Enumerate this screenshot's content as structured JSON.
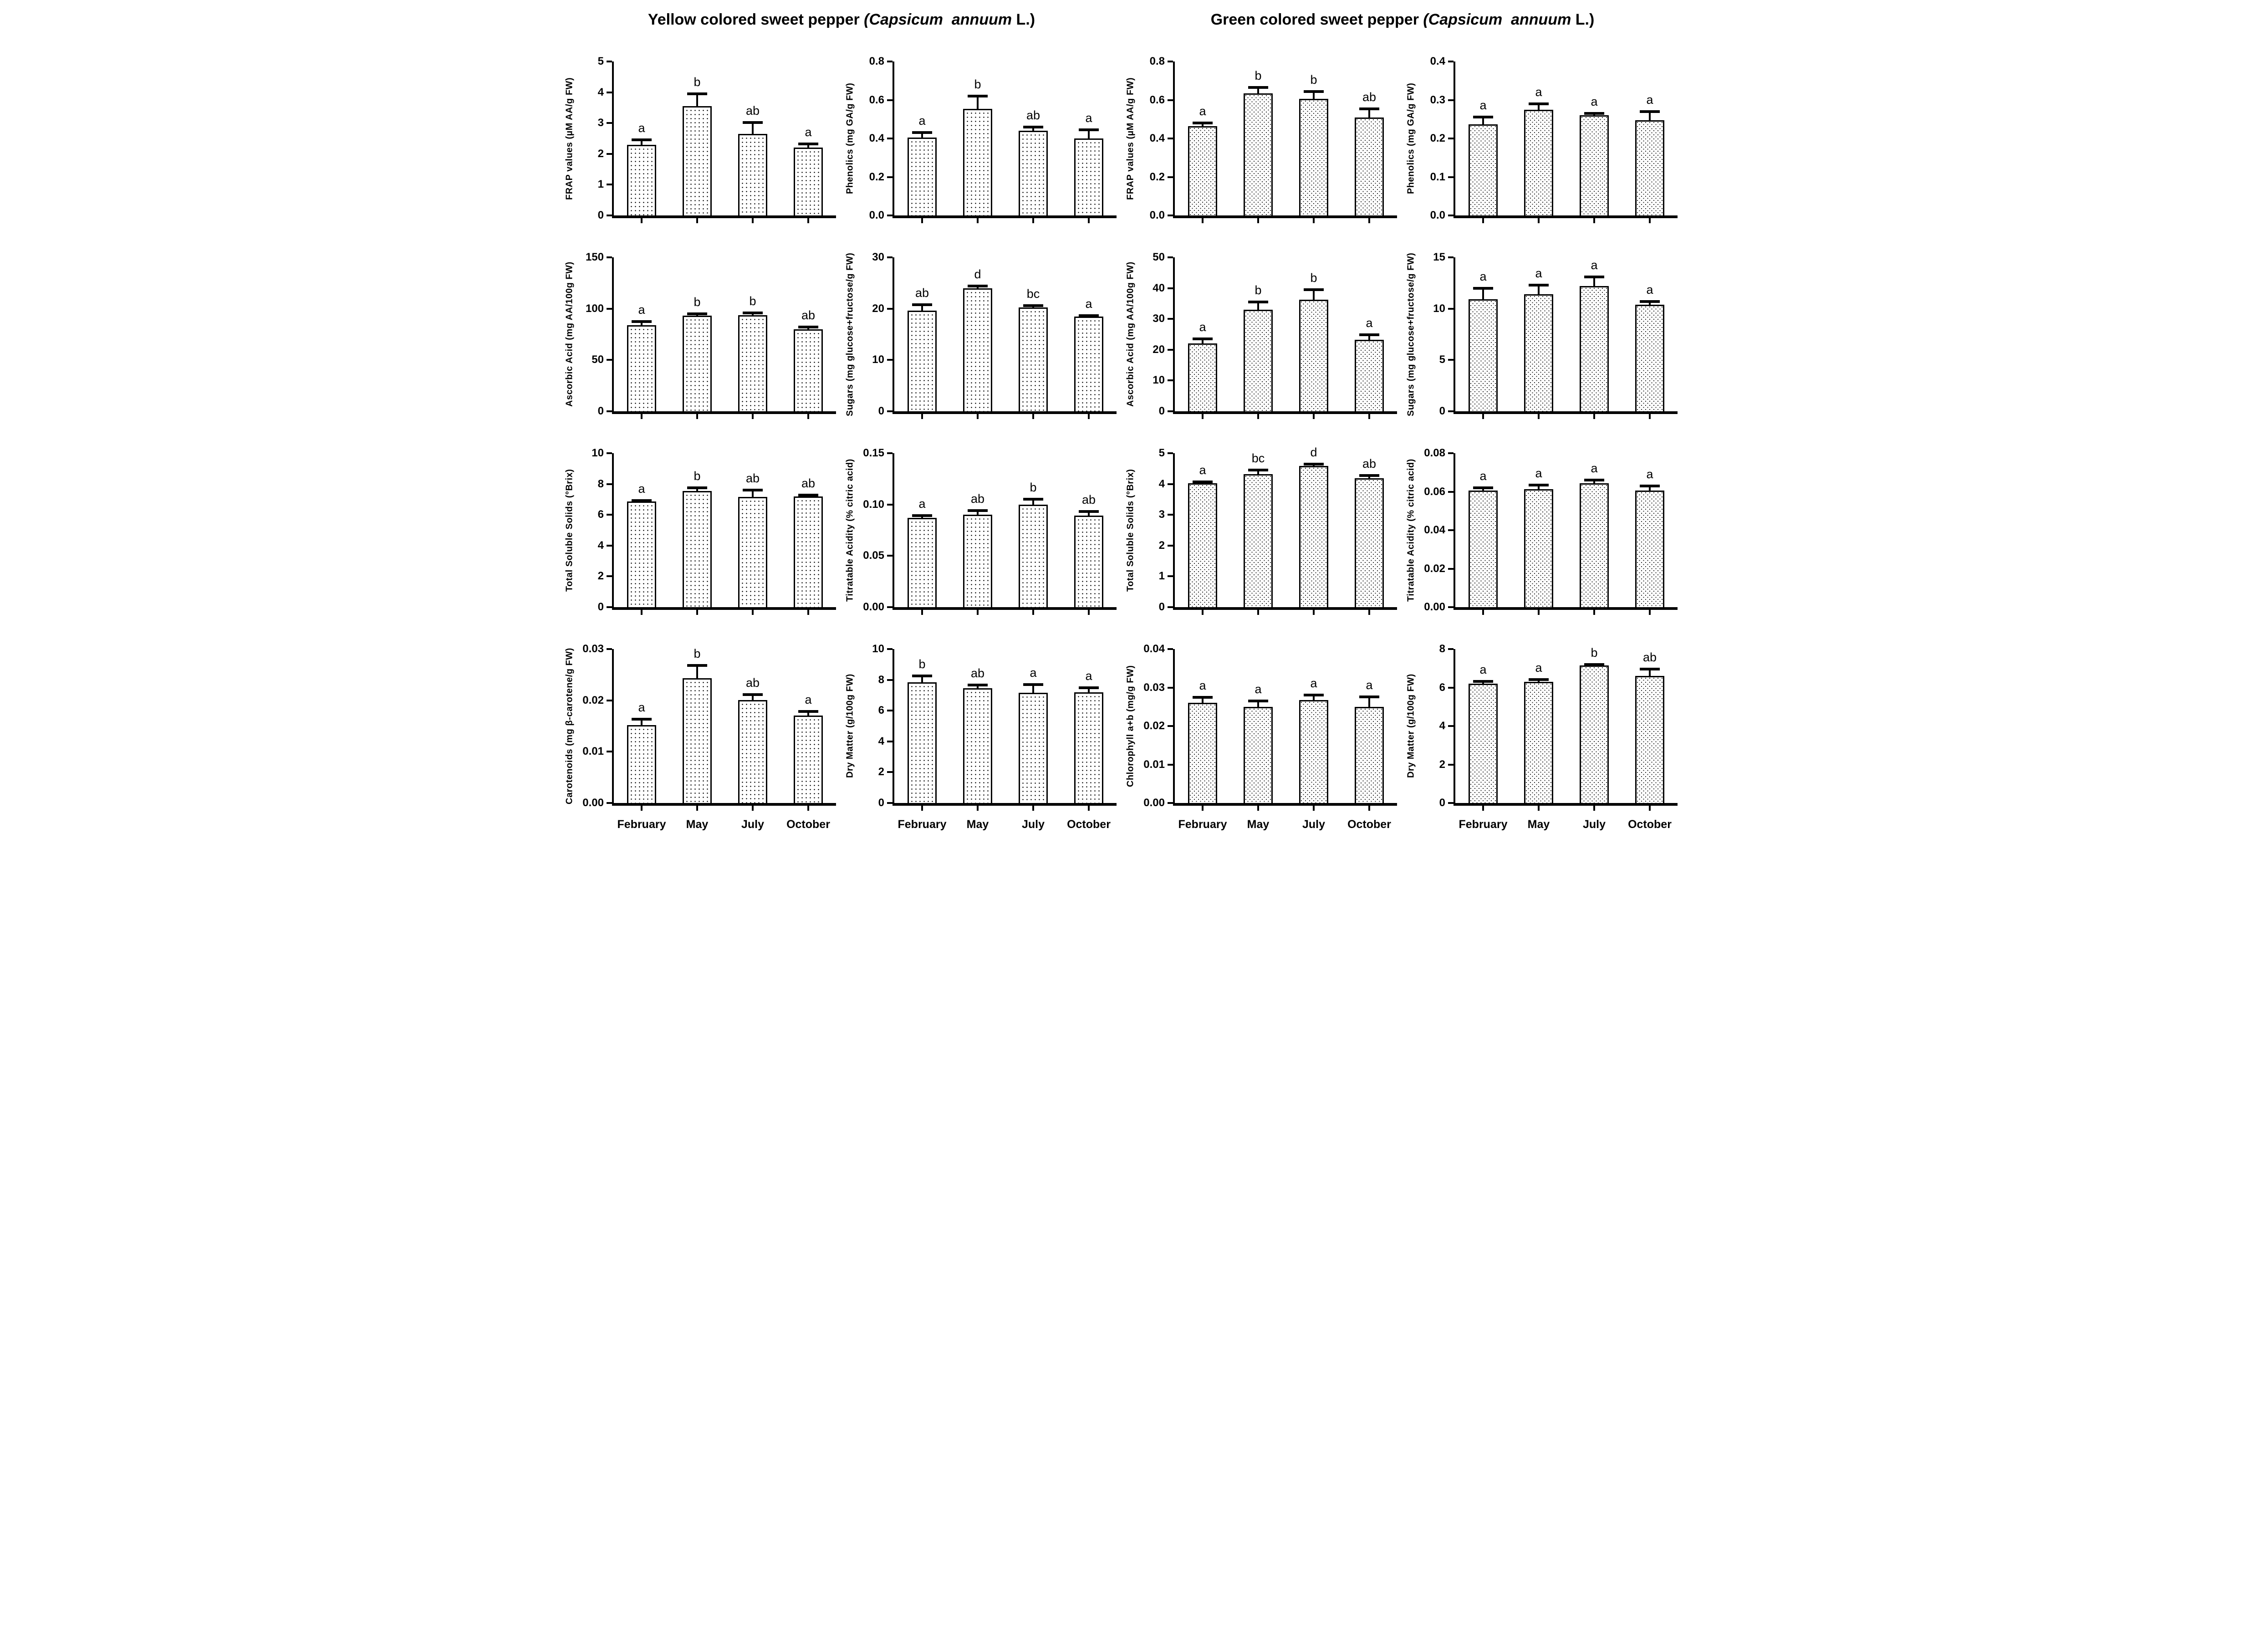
{
  "figure": {
    "titles": [
      {
        "plain": "Yellow colored sweet pepper ",
        "italic": "(Capsicum  annuum",
        "suffix": " L.)"
      },
      {
        "plain": "Green colored sweet pepper ",
        "italic": "(Capsicum  annuum",
        "suffix": " L.)"
      }
    ],
    "categories": [
      "February",
      "May",
      "July",
      "October"
    ],
    "colors": {
      "ink": "#000000",
      "background": "#ffffff"
    }
  },
  "chart_data": [
    {
      "name": "yellow-frap-chart",
      "group": "yellow",
      "type": "bar",
      "title": "",
      "xlabel": "",
      "ylabel": "FRAP values (µM AA/g FW)",
      "ymax": 5,
      "tick_values": [
        0,
        1,
        2,
        3,
        4,
        5
      ],
      "tick_labels": [
        "0",
        "1",
        "2",
        "3",
        "4",
        "5"
      ],
      "categories": [
        "February",
        "May",
        "July",
        "October"
      ],
      "values": [
        2.3,
        3.55,
        2.65,
        2.2
      ],
      "errors": [
        0.15,
        0.4,
        0.37,
        0.12
      ],
      "letters": [
        "a",
        "b",
        "ab",
        "a"
      ],
      "show_x_labels": false
    },
    {
      "name": "yellow-phenolics-chart",
      "group": "yellow",
      "type": "bar",
      "title": "",
      "xlabel": "",
      "ylabel": "Phenolics (mg GA/g FW)",
      "ymax": 0.8,
      "tick_values": [
        0,
        0.2,
        0.4,
        0.6,
        0.8
      ],
      "tick_labels": [
        "0.0",
        "0.2",
        "0.4",
        "0.6",
        "0.8"
      ],
      "categories": [
        "February",
        "May",
        "July",
        "October"
      ],
      "values": [
        0.405,
        0.555,
        0.44,
        0.4
      ],
      "errors": [
        0.025,
        0.065,
        0.02,
        0.045
      ],
      "letters": [
        "a",
        "b",
        "ab",
        "a"
      ],
      "show_x_labels": false
    },
    {
      "name": "green-frap-chart",
      "group": "green",
      "type": "bar",
      "title": "",
      "xlabel": "",
      "ylabel": "FRAP values (µM AA/g FW)",
      "ymax": 0.8,
      "tick_values": [
        0,
        0.2,
        0.4,
        0.6,
        0.8
      ],
      "tick_labels": [
        "0.0",
        "0.2",
        "0.4",
        "0.6",
        "0.8"
      ],
      "categories": [
        "February",
        "May",
        "July",
        "October"
      ],
      "values": [
        0.465,
        0.635,
        0.605,
        0.51
      ],
      "errors": [
        0.015,
        0.03,
        0.04,
        0.045
      ],
      "letters": [
        "a",
        "b",
        "b",
        "ab"
      ],
      "show_x_labels": false
    },
    {
      "name": "green-phenolics-chart",
      "group": "green",
      "type": "bar",
      "title": "",
      "xlabel": "",
      "ylabel": "Phenolics (mg GA/g FW)",
      "ymax": 0.4,
      "tick_values": [
        0,
        0.1,
        0.2,
        0.3,
        0.4
      ],
      "tick_labels": [
        "0.0",
        "0.1",
        "0.2",
        "0.3",
        "0.4"
      ],
      "categories": [
        "February",
        "May",
        "July",
        "October"
      ],
      "values": [
        0.237,
        0.275,
        0.26,
        0.247
      ],
      "errors": [
        0.019,
        0.015,
        0.005,
        0.023
      ],
      "letters": [
        "a",
        "a",
        "a",
        "a"
      ],
      "show_x_labels": false
    },
    {
      "name": "yellow-ascorbic-acid-chart",
      "group": "yellow",
      "type": "bar",
      "title": "",
      "xlabel": "",
      "ylabel": "Ascorbic Acid (mg AA/100g FW)",
      "ymax": 150,
      "tick_values": [
        0,
        50,
        100,
        150
      ],
      "tick_labels": [
        "0",
        "50",
        "100",
        "150"
      ],
      "categories": [
        "February",
        "May",
        "July",
        "October"
      ],
      "values": [
        84,
        93,
        93.5,
        80
      ],
      "errors": [
        3.5,
        2,
        2.5,
        2
      ],
      "letters": [
        "a",
        "b",
        "b",
        "ab"
      ],
      "show_x_labels": false
    },
    {
      "name": "yellow-sugars-chart",
      "group": "yellow",
      "type": "bar",
      "title": "",
      "xlabel": "",
      "ylabel": "Sugars (mg glucose+fructose/g FW)",
      "ymax": 30,
      "tick_values": [
        0,
        10,
        20,
        30
      ],
      "tick_labels": [
        "0",
        "10",
        "20",
        "30"
      ],
      "categories": [
        "February",
        "May",
        "July",
        "October"
      ],
      "values": [
        19.6,
        24,
        20.2,
        18.5
      ],
      "errors": [
        1.2,
        0.4,
        0.4,
        0.15
      ],
      "letters": [
        "ab",
        "d",
        "bc",
        "a"
      ],
      "show_x_labels": false
    },
    {
      "name": "green-ascorbic-acid-chart",
      "group": "green",
      "type": "bar",
      "title": "",
      "xlabel": "",
      "ylabel": "Ascorbic Acid (mg AA/100g FW)",
      "ymax": 50,
      "tick_values": [
        0,
        10,
        20,
        30,
        40,
        50
      ],
      "tick_labels": [
        "0",
        "10",
        "20",
        "30",
        "40",
        "50"
      ],
      "categories": [
        "February",
        "May",
        "July",
        "October"
      ],
      "values": [
        22,
        33,
        36.2,
        23.3
      ],
      "errors": [
        1.5,
        2.5,
        3.3,
        1.5
      ],
      "letters": [
        "a",
        "b",
        "b",
        "a"
      ],
      "show_x_labels": false
    },
    {
      "name": "green-sugars-chart",
      "group": "green",
      "type": "bar",
      "title": "",
      "xlabel": "",
      "ylabel": "Sugars (mg glucose+fructose/g FW)",
      "ymax": 15,
      "tick_values": [
        0,
        5,
        10,
        15
      ],
      "tick_labels": [
        "0",
        "5",
        "10",
        "15"
      ],
      "categories": [
        "February",
        "May",
        "July",
        "October"
      ],
      "values": [
        10.9,
        11.4,
        12.2,
        10.4
      ],
      "errors": [
        1.1,
        0.9,
        0.9,
        0.3
      ],
      "letters": [
        "a",
        "a",
        "a",
        "a"
      ],
      "show_x_labels": false
    },
    {
      "name": "yellow-total-soluble-solids-chart",
      "group": "yellow",
      "type": "bar",
      "title": "",
      "xlabel": "",
      "ylabel": "Total Soluble Solids (°Brix)",
      "ymax": 10,
      "tick_values": [
        0,
        2,
        4,
        6,
        8,
        10
      ],
      "tick_labels": [
        "0",
        "2",
        "4",
        "6",
        "8",
        "10"
      ],
      "categories": [
        "February",
        "May",
        "July",
        "October"
      ],
      "values": [
        6.85,
        7.55,
        7.15,
        7.2
      ],
      "errors": [
        0.08,
        0.2,
        0.45,
        0.08
      ],
      "letters": [
        "a",
        "b",
        "ab",
        "ab"
      ],
      "show_x_labels": false
    },
    {
      "name": "yellow-titratable-acidity-chart",
      "group": "yellow",
      "type": "bar",
      "title": "",
      "xlabel": "",
      "ylabel": "Titratable Acidity (% citric acid)",
      "ymax": 0.15,
      "tick_values": [
        0,
        0.05,
        0.1,
        0.15
      ],
      "tick_labels": [
        "0.00",
        "0.05",
        "0.10",
        "0.15"
      ],
      "categories": [
        "February",
        "May",
        "July",
        "October"
      ],
      "values": [
        0.087,
        0.09,
        0.1,
        0.089
      ],
      "errors": [
        0.002,
        0.004,
        0.005,
        0.004
      ],
      "letters": [
        "a",
        "ab",
        "b",
        "ab"
      ],
      "show_x_labels": false
    },
    {
      "name": "green-total-soluble-solids-chart",
      "group": "green",
      "type": "bar",
      "title": "",
      "xlabel": "",
      "ylabel": "Total Soluble Solids (°Brix)",
      "ymax": 5,
      "tick_values": [
        0,
        1,
        2,
        3,
        4,
        5
      ],
      "tick_labels": [
        "0",
        "1",
        "2",
        "3",
        "4",
        "5"
      ],
      "categories": [
        "February",
        "May",
        "July",
        "October"
      ],
      "values": [
        4.03,
        4.32,
        4.58,
        4.18
      ],
      "errors": [
        0.04,
        0.13,
        0.07,
        0.09
      ],
      "letters": [
        "a",
        "bc",
        "d",
        "ab"
      ],
      "show_x_labels": false
    },
    {
      "name": "green-titratable-acidity-chart",
      "group": "green",
      "type": "bar",
      "title": "",
      "xlabel": "",
      "ylabel": "Titratable Acidity (% citric acid)",
      "ymax": 0.08,
      "tick_values": [
        0,
        0.02,
        0.04,
        0.06,
        0.08
      ],
      "tick_labels": [
        "0.00",
        "0.02",
        "0.04",
        "0.06",
        "0.08"
      ],
      "categories": [
        "February",
        "May",
        "July",
        "October"
      ],
      "values": [
        0.0605,
        0.0612,
        0.0645,
        0.0605
      ],
      "errors": [
        0.0015,
        0.0023,
        0.0015,
        0.0025
      ],
      "letters": [
        "a",
        "a",
        "a",
        "a"
      ],
      "show_x_labels": false
    },
    {
      "name": "yellow-carotenoids-chart",
      "group": "yellow",
      "type": "bar",
      "title": "",
      "xlabel": "",
      "ylabel": "Carotenoids (mg β-carotene/g FW)",
      "ymax": 0.03,
      "tick_values": [
        0,
        0.01,
        0.02,
        0.03
      ],
      "tick_labels": [
        "0.00",
        "0.01",
        "0.02",
        "0.03"
      ],
      "categories": [
        "February",
        "May",
        "July",
        "October"
      ],
      "values": [
        0.0152,
        0.0243,
        0.0201,
        0.017
      ],
      "errors": [
        0.0011,
        0.0025,
        0.001,
        0.0008
      ],
      "letters": [
        "a",
        "b",
        "ab",
        "a"
      ],
      "show_x_labels": true
    },
    {
      "name": "yellow-dry-matter-chart",
      "group": "yellow",
      "type": "bar",
      "title": "",
      "xlabel": "",
      "ylabel": "Dry Matter (g/100g FW)",
      "ymax": 10,
      "tick_values": [
        0,
        2,
        4,
        6,
        8,
        10
      ],
      "tick_labels": [
        "0",
        "2",
        "4",
        "6",
        "8",
        "10"
      ],
      "categories": [
        "February",
        "May",
        "July",
        "October"
      ],
      "values": [
        7.85,
        7.45,
        7.15,
        7.2
      ],
      "errors": [
        0.4,
        0.2,
        0.55,
        0.3
      ],
      "letters": [
        "b",
        "ab",
        "a",
        "a"
      ],
      "show_x_labels": true
    },
    {
      "name": "green-chlorophyll-chart",
      "group": "green",
      "type": "bar",
      "title": "",
      "xlabel": "",
      "ylabel": "Chlorophyll a+b (mg/g FW)",
      "ymax": 0.04,
      "tick_values": [
        0,
        0.01,
        0.02,
        0.03,
        0.04
      ],
      "tick_labels": [
        "0.00",
        "0.01",
        "0.02",
        "0.03",
        "0.04"
      ],
      "categories": [
        "February",
        "May",
        "July",
        "October"
      ],
      "values": [
        0.026,
        0.025,
        0.0268,
        0.025
      ],
      "errors": [
        0.0015,
        0.0015,
        0.0013,
        0.0026
      ],
      "letters": [
        "a",
        "a",
        "a",
        "a"
      ],
      "show_x_labels": true
    },
    {
      "name": "green-dry-matter-chart",
      "group": "green",
      "type": "bar",
      "title": "",
      "xlabel": "",
      "ylabel": "Dry Matter (g/100g FW)",
      "ymax": 8,
      "tick_values": [
        0,
        2,
        4,
        6,
        8
      ],
      "tick_labels": [
        "0",
        "2",
        "4",
        "6",
        "8"
      ],
      "categories": [
        "February",
        "May",
        "July",
        "October"
      ],
      "values": [
        6.2,
        6.3,
        7.15,
        6.6
      ],
      "errors": [
        0.12,
        0.12,
        0.05,
        0.35
      ],
      "letters": [
        "a",
        "a",
        "b",
        "ab"
      ],
      "show_x_labels": true
    }
  ]
}
